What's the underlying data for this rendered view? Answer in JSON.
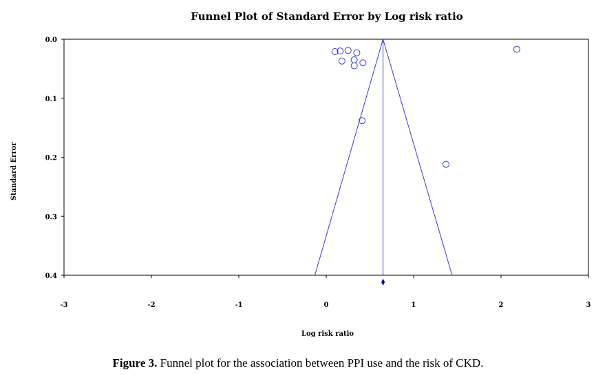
{
  "chart_data": {
    "type": "scatter",
    "title": "Funnel Plot of Standard Error by Log risk ratio",
    "xlabel": "Log risk ratio",
    "ylabel": "Standard Error",
    "xlim": [
      -3,
      3
    ],
    "ylim": [
      0.0,
      0.4
    ],
    "y_inverted": true,
    "x_ticks": [
      "-3",
      "-2",
      "-1",
      "0",
      "1",
      "2",
      "3"
    ],
    "y_ticks": [
      "0.0",
      "0.1",
      "0.2",
      "0.3",
      "0.4"
    ],
    "summary_effect": 0.65,
    "funnel_base": [
      -0.13,
      1.44
    ],
    "points": [
      {
        "x": 0.1,
        "y": 0.021
      },
      {
        "x": 0.16,
        "y": 0.02
      },
      {
        "x": 0.25,
        "y": 0.019
      },
      {
        "x": 0.35,
        "y": 0.023
      },
      {
        "x": 0.18,
        "y": 0.037
      },
      {
        "x": 0.32,
        "y": 0.035
      },
      {
        "x": 0.32,
        "y": 0.045
      },
      {
        "x": 0.42,
        "y": 0.04
      },
      {
        "x": 0.41,
        "y": 0.138
      },
      {
        "x": 1.37,
        "y": 0.212
      },
      {
        "x": 2.18,
        "y": 0.017
      }
    ],
    "colors": {
      "marker": "#3a3ad0",
      "lines": "#3a3ad0",
      "diamond": "#0000aa"
    }
  },
  "caption": {
    "label": "Figure 3.",
    "text": " Funnel plot for the association between PPI use and the risk of CKD."
  }
}
